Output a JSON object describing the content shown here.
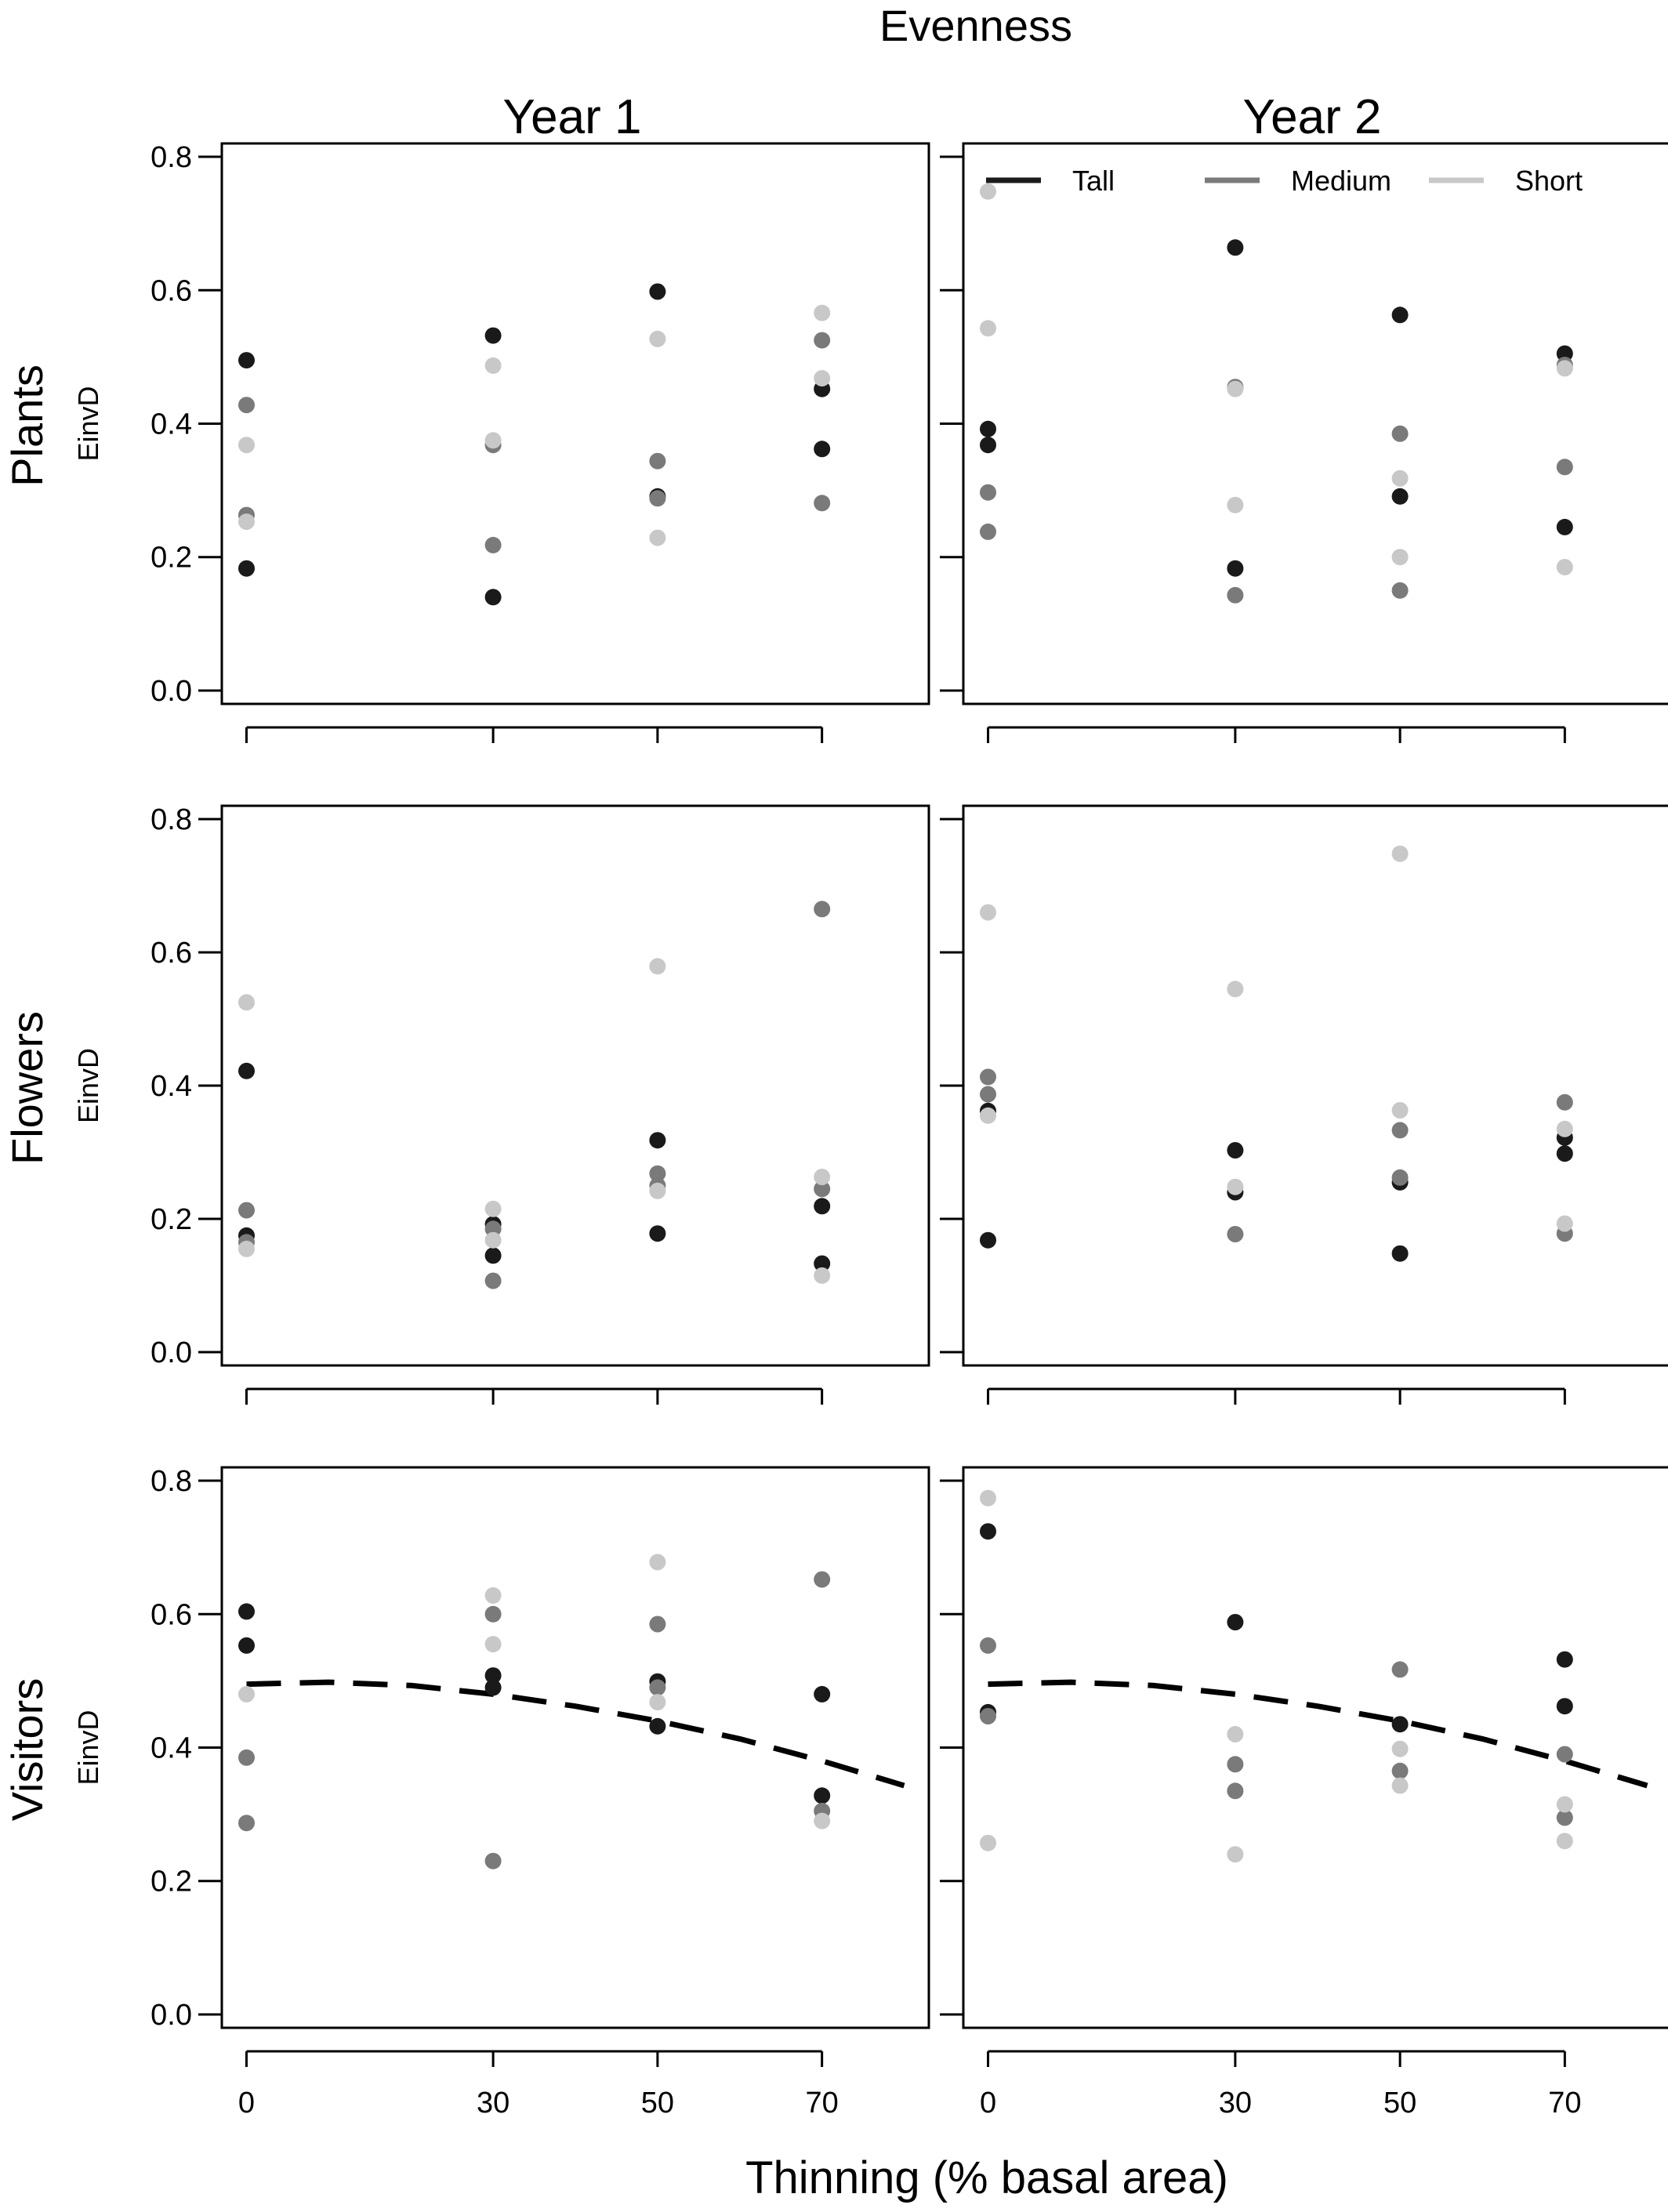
{
  "figure": {
    "title": "Evenness",
    "col_titles": [
      "Year 1",
      "Year 2"
    ],
    "row_titles": [
      "Plants",
      "Flowers",
      "Visitors"
    ],
    "xlabel": "Thinning (% basal area)"
  },
  "legend": {
    "placement": "top",
    "entries": [
      {
        "name": "Tall",
        "color": "#1a1a1a"
      },
      {
        "name": "Medium",
        "color": "#7a7a7a"
      },
      {
        "name": "Short",
        "color": "#c8c8c8"
      }
    ]
  },
  "chart_data": [
    {
      "type": "scatter",
      "row": "Plants",
      "column": "Year 1",
      "xlabel": "",
      "ylabel": "EinvD",
      "x_ticks": [
        0,
        30,
        50,
        70
      ],
      "xlim": [
        -3,
        83
      ],
      "y_ticks": [
        "0.0",
        "0.2",
        "0.4",
        "0.6",
        "0.8"
      ],
      "ylim": [
        -0.02,
        0.82
      ],
      "series": [
        {
          "name": "Tall",
          "color": "#1a1a1a",
          "points": [
            [
              0,
              0.495
            ],
            [
              0,
              0.183
            ],
            [
              30,
              0.532
            ],
            [
              30,
              0.14
            ],
            [
              50,
              0.598
            ],
            [
              50,
              0.291
            ],
            [
              70,
              0.452
            ],
            [
              70,
              0.362
            ]
          ]
        },
        {
          "name": "Medium",
          "color": "#7a7a7a",
          "points": [
            [
              0,
              0.428
            ],
            [
              0,
              0.263
            ],
            [
              30,
              0.368
            ],
            [
              30,
              0.218
            ],
            [
              50,
              0.344
            ],
            [
              50,
              0.288
            ],
            [
              70,
              0.525
            ],
            [
              70,
              0.281
            ]
          ]
        },
        {
          "name": "Short",
          "color": "#c8c8c8",
          "points": [
            [
              0,
              0.368
            ],
            [
              0,
              0.253
            ],
            [
              30,
              0.487
            ],
            [
              30,
              0.375
            ],
            [
              50,
              0.527
            ],
            [
              50,
              0.229
            ],
            [
              70,
              0.566
            ],
            [
              70,
              0.468
            ]
          ]
        }
      ]
    },
    {
      "type": "scatter",
      "row": "Plants",
      "column": "Year 2",
      "xlabel": "",
      "ylabel": "",
      "x_ticks": [
        0,
        30,
        50,
        70
      ],
      "xlim": [
        -3,
        83
      ],
      "y_ticks": [
        "",
        "",
        "",
        "",
        ""
      ],
      "ylim": [
        -0.02,
        0.82
      ],
      "series": [
        {
          "name": "Tall",
          "color": "#1a1a1a",
          "points": [
            [
              0,
              0.392
            ],
            [
              0,
              0.368
            ],
            [
              30,
              0.664
            ],
            [
              30,
              0.183
            ],
            [
              50,
              0.563
            ],
            [
              50,
              0.291
            ],
            [
              70,
              0.505
            ],
            [
              70,
              0.245
            ]
          ]
        },
        {
          "name": "Medium",
          "color": "#7a7a7a",
          "points": [
            [
              0,
              0.297
            ],
            [
              0,
              0.238
            ],
            [
              30,
              0.455
            ],
            [
              30,
              0.143
            ],
            [
              50,
              0.385
            ],
            [
              50,
              0.15
            ],
            [
              70,
              0.335
            ],
            [
              70,
              0.488
            ]
          ]
        },
        {
          "name": "Short",
          "color": "#c8c8c8",
          "points": [
            [
              0,
              0.748
            ],
            [
              0,
              0.543
            ],
            [
              30,
              0.452
            ],
            [
              30,
              0.278
            ],
            [
              50,
              0.318
            ],
            [
              50,
              0.2
            ],
            [
              70,
              0.483
            ],
            [
              70,
              0.185
            ]
          ]
        }
      ]
    },
    {
      "type": "scatter",
      "row": "Flowers",
      "column": "Year 1",
      "xlabel": "",
      "ylabel": "EinvD",
      "x_ticks": [
        0,
        30,
        50,
        70
      ],
      "xlim": [
        -3,
        83
      ],
      "y_ticks": [
        "0.0",
        "0.2",
        "0.4",
        "0.6",
        "0.8"
      ],
      "ylim": [
        -0.02,
        0.82
      ],
      "series": [
        {
          "name": "Tall",
          "color": "#1a1a1a",
          "points": [
            [
              0,
              0.422
            ],
            [
              0,
              0.175
            ],
            [
              30,
              0.192
            ],
            [
              30,
              0.145
            ],
            [
              50,
              0.318
            ],
            [
              50,
              0.178
            ],
            [
              70,
              0.219
            ],
            [
              70,
              0.133
            ]
          ]
        },
        {
          "name": "Medium",
          "color": "#7a7a7a",
          "points": [
            [
              0,
              0.213
            ],
            [
              0,
              0.165
            ],
            [
              30,
              0.185
            ],
            [
              30,
              0.107
            ],
            [
              50,
              0.268
            ],
            [
              50,
              0.25
            ],
            [
              70,
              0.665
            ],
            [
              70,
              0.245
            ]
          ]
        },
        {
          "name": "Short",
          "color": "#c8c8c8",
          "points": [
            [
              0,
              0.525
            ],
            [
              0,
              0.155
            ],
            [
              30,
              0.215
            ],
            [
              30,
              0.168
            ],
            [
              50,
              0.579
            ],
            [
              50,
              0.242
            ],
            [
              70,
              0.263
            ],
            [
              70,
              0.115
            ]
          ]
        }
      ]
    },
    {
      "type": "scatter",
      "row": "Flowers",
      "column": "Year 2",
      "xlabel": "",
      "ylabel": "",
      "x_ticks": [
        0,
        30,
        50,
        70
      ],
      "xlim": [
        -3,
        83
      ],
      "y_ticks": [
        "",
        "",
        "",
        "",
        ""
      ],
      "ylim": [
        -0.02,
        0.82
      ],
      "series": [
        {
          "name": "Tall",
          "color": "#1a1a1a",
          "points": [
            [
              0,
              0.362
            ],
            [
              0,
              0.168
            ],
            [
              30,
              0.303
            ],
            [
              30,
              0.24
            ],
            [
              50,
              0.255
            ],
            [
              50,
              0.148
            ],
            [
              70,
              0.322
            ],
            [
              70,
              0.298
            ]
          ]
        },
        {
          "name": "Medium",
          "color": "#7a7a7a",
          "points": [
            [
              0,
              0.413
            ],
            [
              0,
              0.387
            ],
            [
              30,
              0.177
            ],
            [
              50,
              0.333
            ],
            [
              50,
              0.262
            ],
            [
              70,
              0.375
            ],
            [
              70,
              0.178
            ]
          ]
        },
        {
          "name": "Short",
          "color": "#c8c8c8",
          "points": [
            [
              0,
              0.66
            ],
            [
              0,
              0.355
            ],
            [
              30,
              0.545
            ],
            [
              30,
              0.248
            ],
            [
              50,
              0.748
            ],
            [
              50,
              0.363
            ],
            [
              70,
              0.335
            ],
            [
              70,
              0.193
            ]
          ]
        }
      ]
    },
    {
      "type": "scatter",
      "row": "Visitors",
      "column": "Year 1",
      "xlabel": "",
      "ylabel": "EinvD",
      "x_ticks": [
        0,
        30,
        50,
        70
      ],
      "xlim": [
        -3,
        83
      ],
      "y_ticks": [
        "0.0",
        "0.2",
        "0.4",
        "0.6",
        "0.8"
      ],
      "ylim": [
        -0.02,
        0.82
      ],
      "series": [
        {
          "name": "Tall",
          "color": "#1a1a1a",
          "points": [
            [
              0,
              0.604
            ],
            [
              0,
              0.553
            ],
            [
              30,
              0.508
            ],
            [
              30,
              0.49
            ],
            [
              50,
              0.499
            ],
            [
              50,
              0.432
            ],
            [
              70,
              0.48
            ],
            [
              70,
              0.328
            ]
          ]
        },
        {
          "name": "Medium",
          "color": "#7a7a7a",
          "points": [
            [
              0,
              0.385
            ],
            [
              0,
              0.287
            ],
            [
              30,
              0.6
            ],
            [
              30,
              0.23
            ],
            [
              50,
              0.585
            ],
            [
              50,
              0.49
            ],
            [
              70,
              0.652
            ],
            [
              70,
              0.305
            ]
          ]
        },
        {
          "name": "Short",
          "color": "#c8c8c8",
          "points": [
            [
              0,
              0.48
            ],
            [
              30,
              0.628
            ],
            [
              30,
              0.555
            ],
            [
              50,
              0.678
            ],
            [
              50,
              0.468
            ],
            [
              70,
              0.29
            ]
          ]
        }
      ],
      "trend": {
        "name": "Tall",
        "style": "dashed",
        "points": [
          [
            0,
            0.495
          ],
          [
            10,
            0.498
          ],
          [
            20,
            0.493
          ],
          [
            30,
            0.48
          ],
          [
            40,
            0.462
          ],
          [
            50,
            0.44
          ],
          [
            60,
            0.413
          ],
          [
            70,
            0.38
          ],
          [
            80,
            0.343
          ]
        ]
      }
    },
    {
      "type": "scatter",
      "row": "Visitors",
      "column": "Year 2",
      "xlabel": "",
      "ylabel": "",
      "x_ticks": [
        0,
        30,
        50,
        70
      ],
      "xlim": [
        -3,
        83
      ],
      "y_ticks": [
        "",
        "",
        "",
        "",
        ""
      ],
      "ylim": [
        -0.02,
        0.82
      ],
      "series": [
        {
          "name": "Tall",
          "color": "#1a1a1a",
          "points": [
            [
              0,
              0.724
            ],
            [
              0,
              0.453
            ],
            [
              30,
              0.588
            ],
            [
              50,
              0.435
            ],
            [
              70,
              0.532
            ],
            [
              70,
              0.462
            ]
          ]
        },
        {
          "name": "Medium",
          "color": "#7a7a7a",
          "points": [
            [
              0,
              0.553
            ],
            [
              0,
              0.447
            ],
            [
              30,
              0.375
            ],
            [
              30,
              0.335
            ],
            [
              50,
              0.517
            ],
            [
              50,
              0.365
            ],
            [
              70,
              0.39
            ],
            [
              70,
              0.295
            ]
          ]
        },
        {
          "name": "Short",
          "color": "#c8c8c8",
          "points": [
            [
              0,
              0.774
            ],
            [
              0,
              0.257
            ],
            [
              30,
              0.42
            ],
            [
              30,
              0.24
            ],
            [
              50,
              0.398
            ],
            [
              50,
              0.343
            ],
            [
              70,
              0.315
            ],
            [
              70,
              0.26
            ]
          ]
        }
      ],
      "trend": {
        "name": "Tall",
        "style": "dashed",
        "points": [
          [
            0,
            0.495
          ],
          [
            10,
            0.498
          ],
          [
            20,
            0.493
          ],
          [
            30,
            0.48
          ],
          [
            40,
            0.462
          ],
          [
            50,
            0.44
          ],
          [
            60,
            0.413
          ],
          [
            70,
            0.38
          ],
          [
            80,
            0.343
          ]
        ]
      }
    }
  ]
}
